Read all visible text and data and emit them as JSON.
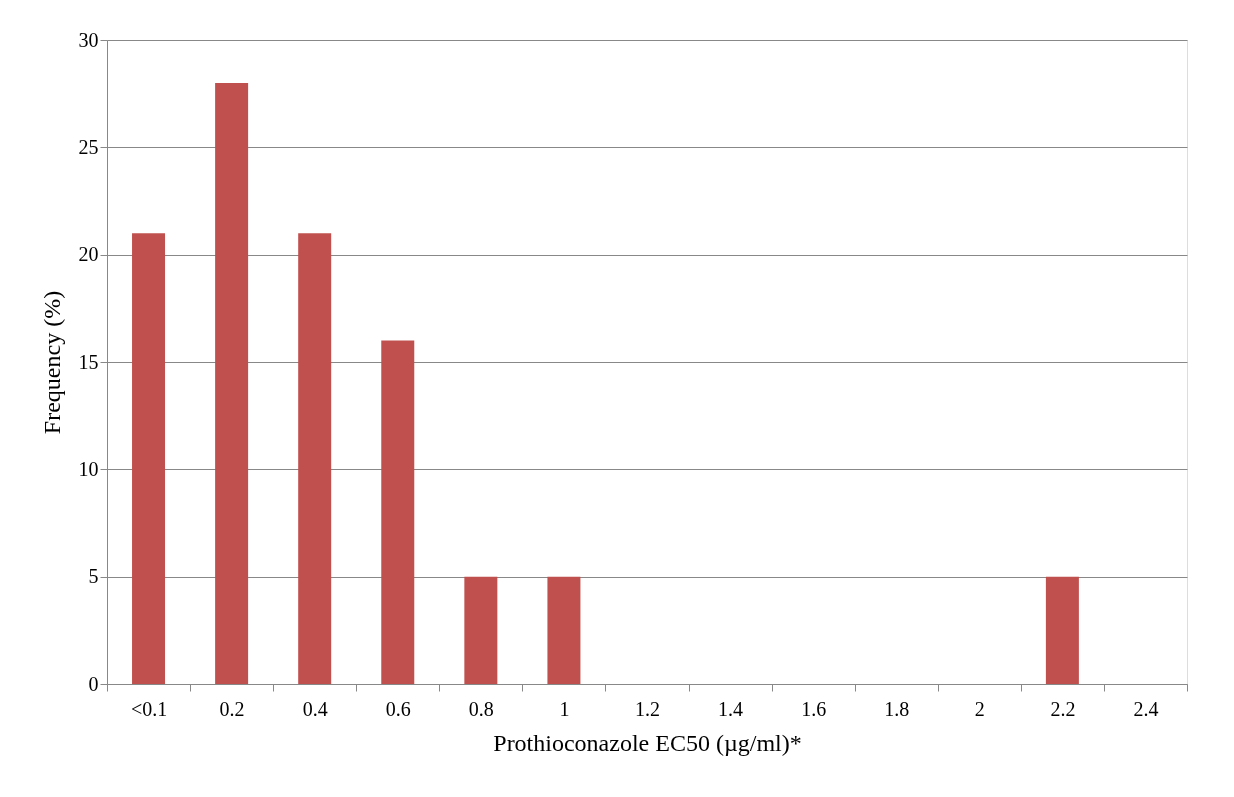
{
  "chart_data": {
    "type": "bar",
    "xlabel": "Prothioconazole EC50 (µg/ml)*",
    "ylabel": "Frequency (%)",
    "categories": [
      "<0.1",
      "0.2",
      "0.4",
      "0.6",
      "0.8",
      "1",
      "1.2",
      "1.4",
      "1.6",
      "1.8",
      "2",
      "2.2",
      "2.4"
    ],
    "values": [
      21,
      28,
      21,
      16,
      5,
      5,
      0,
      0,
      0,
      0,
      0,
      5,
      0
    ],
    "color": "#c0504d",
    "ylim": [
      0,
      30
    ],
    "yticks": [
      0,
      5,
      10,
      15,
      20,
      25,
      30
    ],
    "grid": "y"
  }
}
